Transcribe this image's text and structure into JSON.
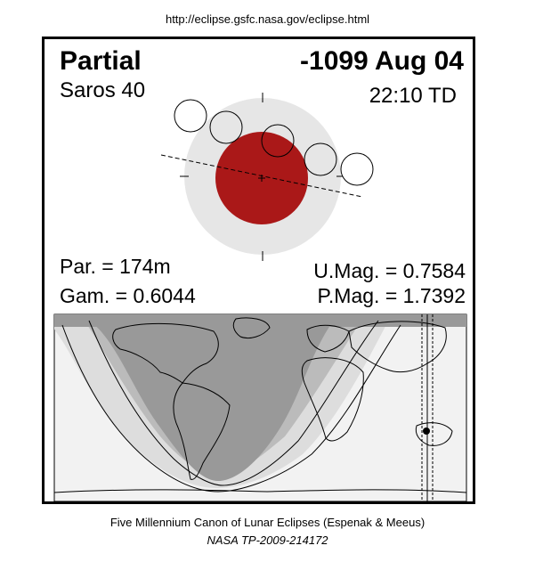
{
  "url": "http://eclipse.gsfc.nasa.gov/eclipse.html",
  "eclipse_type": "Partial",
  "date": "-1099 Aug 04",
  "saros": "Saros  40",
  "time": "22:10 TD",
  "parameters": {
    "par": "Par. = 174m",
    "gam": "Gam. = 0.6044",
    "umag": "U.Mag. = 0.7584",
    "pmag": "P.Mag. = 1.7392"
  },
  "footer": {
    "credit": "Five Millennium Canon of Lunar Eclipses (Espenak & Meeus)",
    "reference": "NASA TP-2009-214172"
  },
  "colors": {
    "umbra": "#aa1818",
    "penumbra": "#e6e6e6",
    "map_day_dark": "#999999",
    "map_mid": "#bbbbbb",
    "map_light": "#dddddd",
    "map_lightest": "#f2f2f2"
  }
}
